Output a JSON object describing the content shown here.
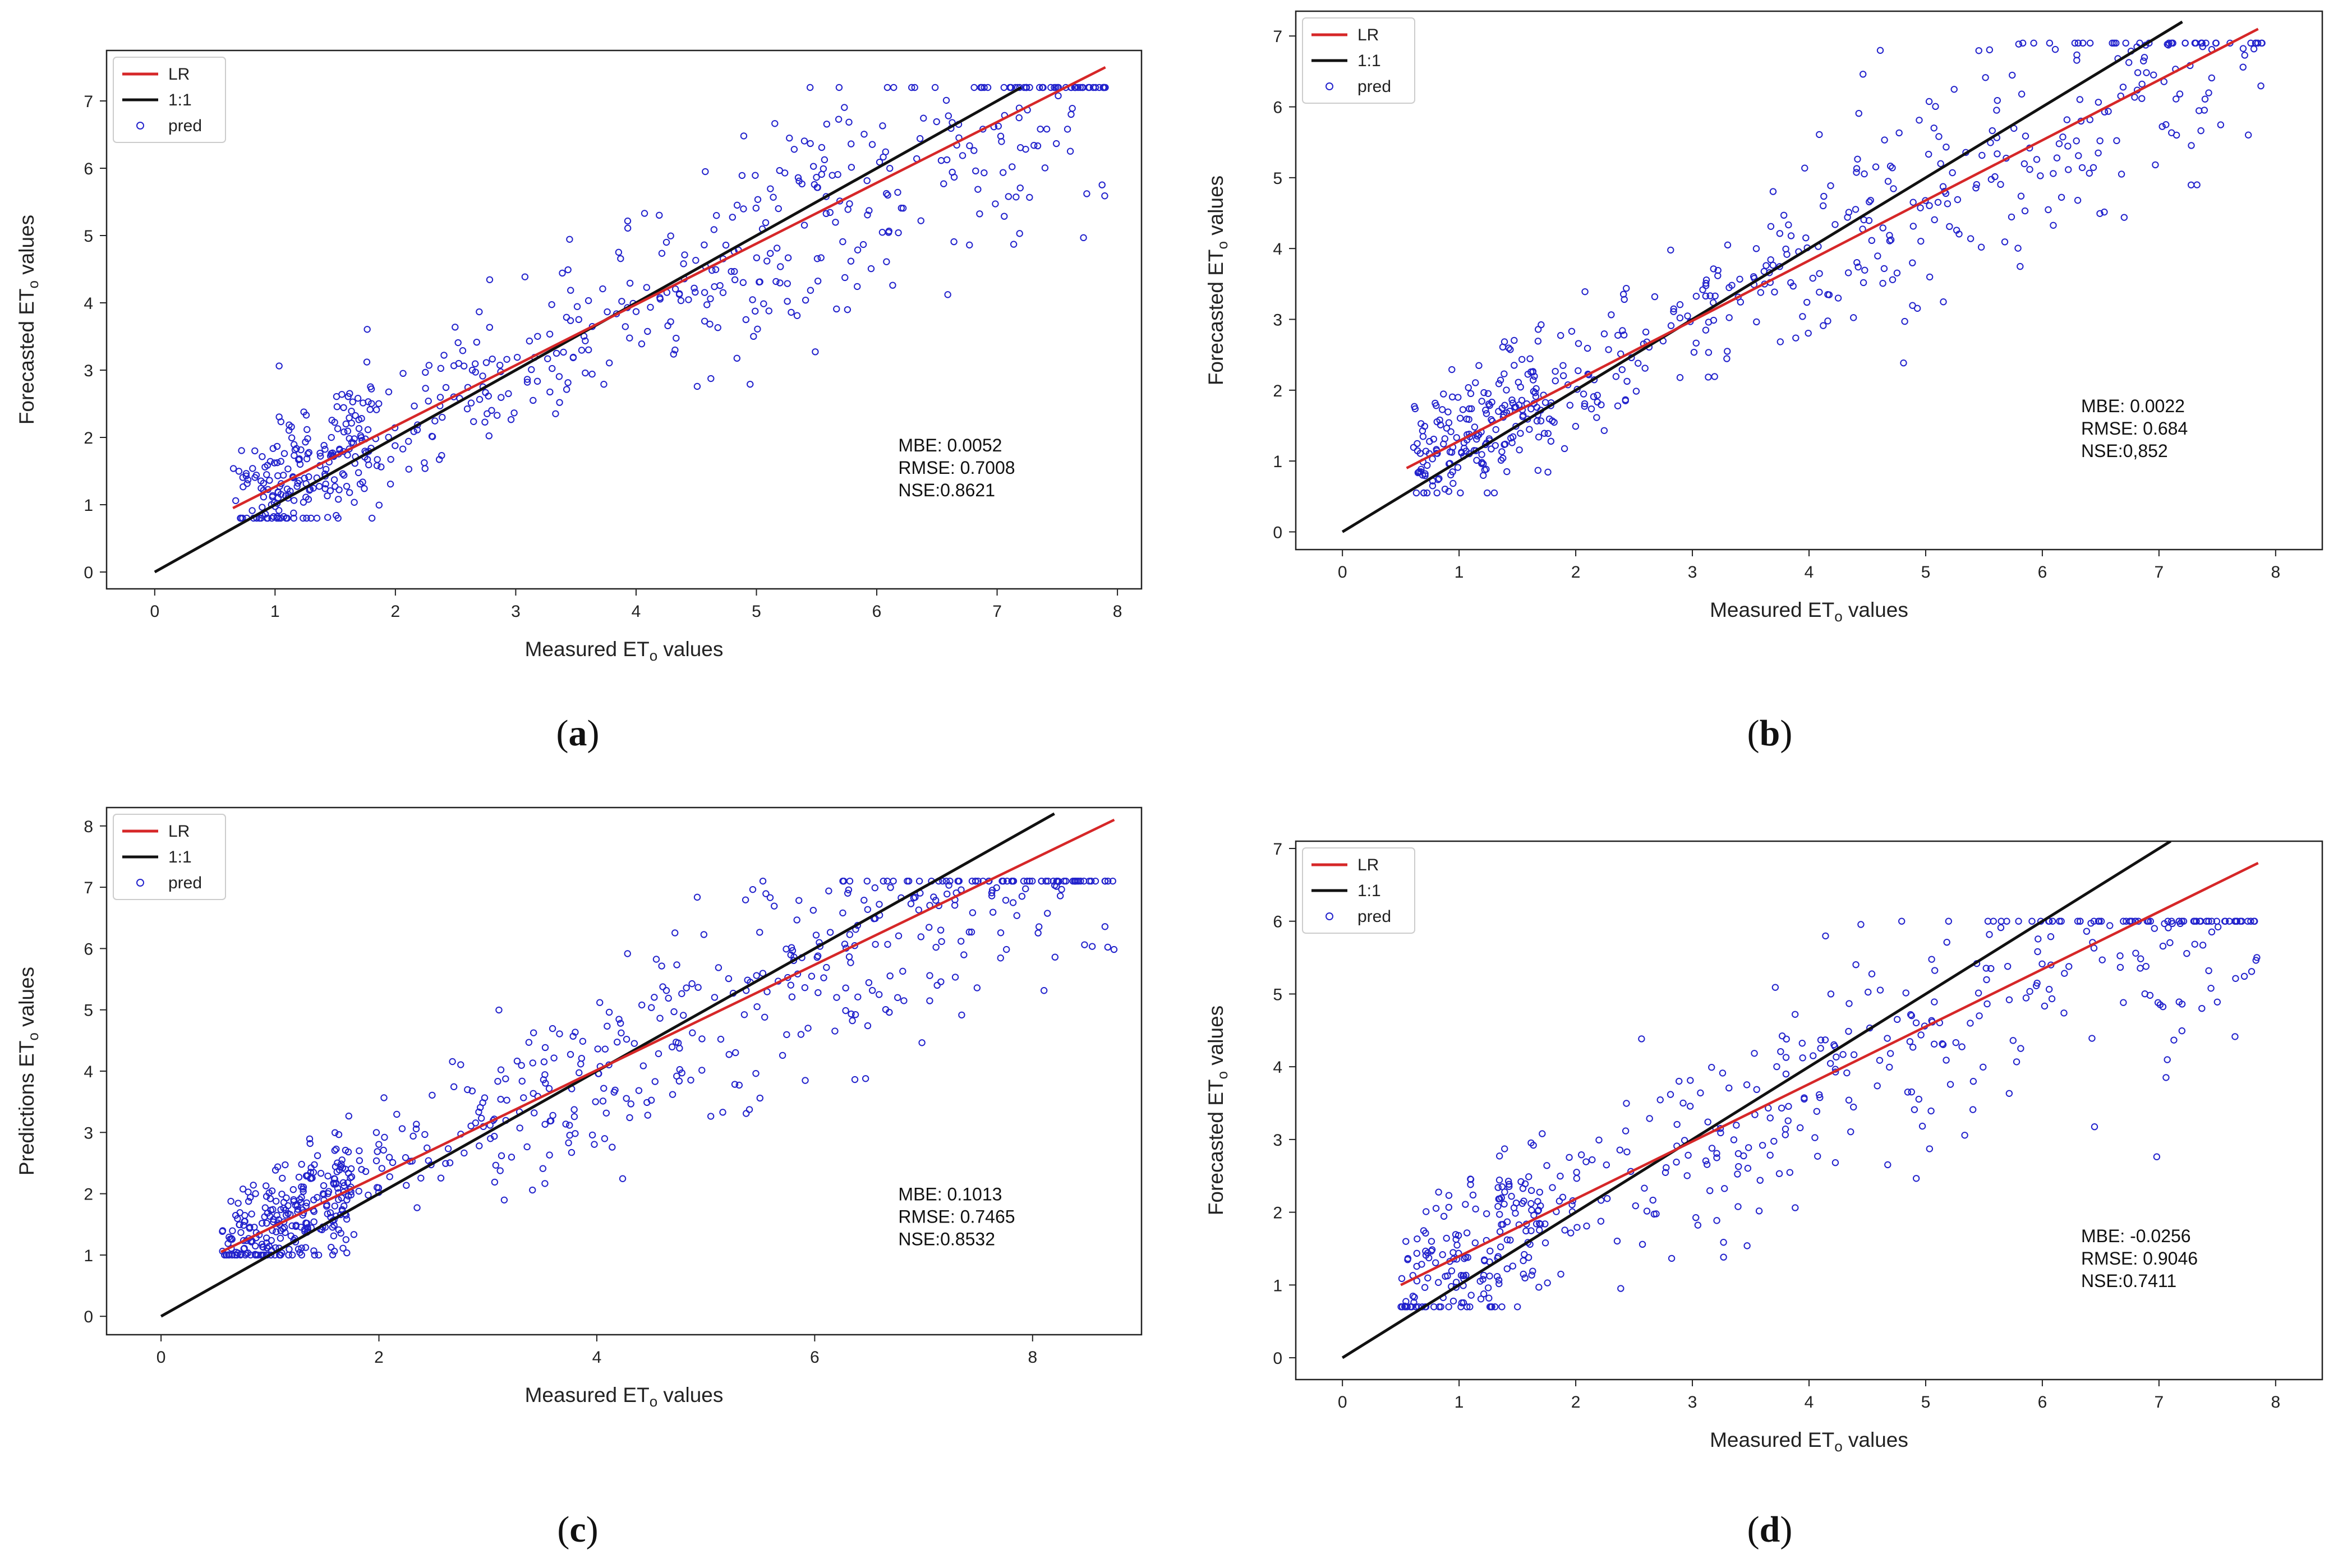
{
  "chart_data": [
    {
      "id": "a",
      "type": "scatter",
      "caption": "a",
      "xlabel_main": "Measured ET",
      "xlabel_sub": "o",
      "xlabel_suffix": " values",
      "ylabel_main": "Forecasted ET",
      "ylabel_sub": "o",
      "ylabel_suffix": " values",
      "xlim": [
        -0.4,
        8.2
      ],
      "ylim": [
        -0.25,
        7.75
      ],
      "xticks": [
        0,
        1,
        2,
        3,
        4,
        5,
        6,
        7,
        8
      ],
      "yticks": [
        0,
        1,
        2,
        3,
        4,
        5,
        6,
        7
      ],
      "legend": [
        "LR",
        "1:1",
        "pred"
      ],
      "legend_loc": "top-left",
      "metrics": [
        "MBE: 0.0052",
        "RMSE: 0.7008",
        "NSE:0.8621"
      ],
      "one_to_one": [
        0,
        7.2
      ],
      "lr": {
        "x0": 0.65,
        "y0": 0.95,
        "x1": 7.9,
        "y1": 7.5
      },
      "points": {
        "n": 620,
        "xmin": 0.65,
        "xmax": 7.9,
        "slope": 0.9,
        "intercept": 0.37,
        "noise": 0.7,
        "ymin": 0.8,
        "ymax": 7.2,
        "seed": 11
      }
    },
    {
      "id": "b",
      "type": "scatter",
      "caption": "b",
      "xlabel_main": "Measured ET",
      "xlabel_sub": "o",
      "xlabel_suffix": " values",
      "ylabel_main": "Forecasted ET",
      "ylabel_sub": "o",
      "ylabel_suffix": " values",
      "xlim": [
        -0.4,
        8.4
      ],
      "ylim": [
        -0.25,
        7.35
      ],
      "xticks": [
        0,
        1,
        2,
        3,
        4,
        5,
        6,
        7,
        8
      ],
      "yticks": [
        0,
        1,
        2,
        3,
        4,
        5,
        6,
        7
      ],
      "legend": [
        "LR",
        "1:1",
        "pred"
      ],
      "legend_loc": "top-left",
      "metrics": [
        "MBE: 0.0022",
        "RMSE: 0.684",
        "NSE:0,852"
      ],
      "one_to_one": [
        0,
        7.2
      ],
      "lr": {
        "x0": 0.55,
        "y0": 0.9,
        "x1": 7.85,
        "y1": 7.1
      },
      "points": {
        "n": 560,
        "xmin": 0.6,
        "xmax": 7.9,
        "slope": 0.85,
        "intercept": 0.43,
        "noise": 0.65,
        "ymin": 0.55,
        "ymax": 6.9,
        "seed": 23
      }
    },
    {
      "id": "c",
      "type": "scatter",
      "caption": "c",
      "xlabel_main": "Measured ET",
      "xlabel_sub": "o",
      "xlabel_suffix": " values",
      "ylabel_main": "Predictions ET",
      "ylabel_sub": "o",
      "ylabel_suffix": " values",
      "xlim": [
        -0.5,
        9.0
      ],
      "ylim": [
        -0.3,
        8.3
      ],
      "xticks": [
        0,
        2,
        4,
        6,
        8
      ],
      "yticks": [
        0,
        1,
        2,
        3,
        4,
        5,
        6,
        7,
        8
      ],
      "legend": [
        "LR",
        "1:1",
        "pred"
      ],
      "legend_loc": "top-left",
      "metrics": [
        "MBE: 0.1013",
        "RMSE: 0.7465",
        "NSE:0.8532"
      ],
      "one_to_one": [
        0,
        8.2
      ],
      "lr": {
        "x0": 0.55,
        "y0": 1.05,
        "x1": 8.75,
        "y1": 8.1
      },
      "points": {
        "n": 700,
        "xmin": 0.55,
        "xmax": 8.75,
        "slope": 0.86,
        "intercept": 0.58,
        "noise": 0.7,
        "ymin": 1.0,
        "ymax": 7.1,
        "seed": 37
      }
    },
    {
      "id": "d",
      "type": "scatter",
      "caption": "d",
      "xlabel_main": "Measured ET",
      "xlabel_sub": "o",
      "xlabel_suffix": " values",
      "ylabel_main": "Forecasted ET",
      "ylabel_sub": "o",
      "ylabel_suffix": " values",
      "xlim": [
        -0.4,
        8.4
      ],
      "ylim": [
        -0.3,
        7.1
      ],
      "xticks": [
        0,
        1,
        2,
        3,
        4,
        5,
        6,
        7,
        8
      ],
      "yticks": [
        0,
        1,
        2,
        3,
        4,
        5,
        6,
        7
      ],
      "legend": [
        "LR",
        "1:1",
        "pred"
      ],
      "legend_loc": "top-left",
      "metrics": [
        "MBE: -0.0256",
        "RMSE: 0.9046",
        "NSE:0.7411"
      ],
      "one_to_one": [
        0,
        7.1
      ],
      "lr": {
        "x0": 0.5,
        "y0": 1.0,
        "x1": 7.85,
        "y1": 6.8
      },
      "points": {
        "n": 520,
        "xmin": 0.5,
        "xmax": 7.85,
        "slope": 0.79,
        "intercept": 0.6,
        "noise": 0.8,
        "ymin": 0.7,
        "ymax": 6.0,
        "seed": 51
      }
    }
  ],
  "colors": {
    "lr": "#d62728",
    "one_to_one": "#111111",
    "pred": "#2222cc",
    "frame": "#222222"
  }
}
